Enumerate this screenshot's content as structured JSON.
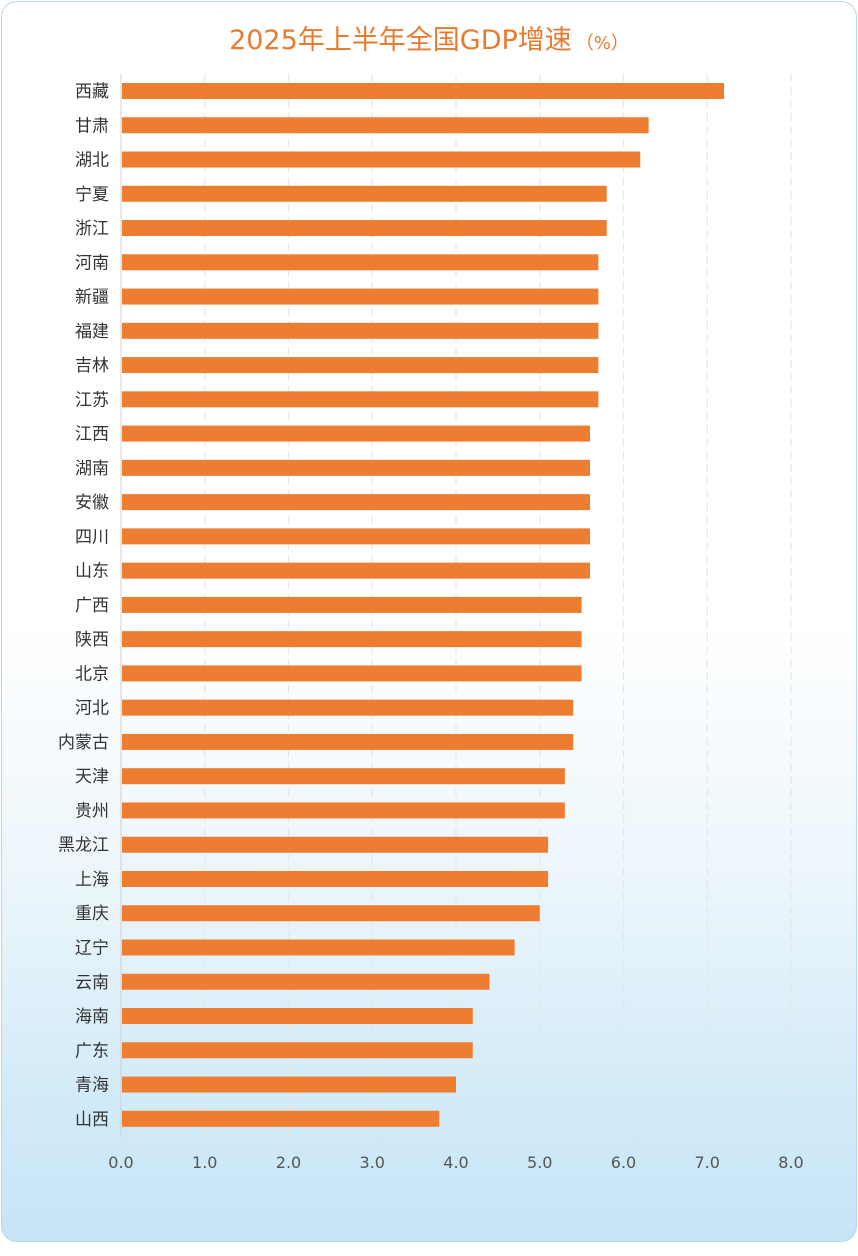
{
  "chart_data": {
    "type": "bar",
    "orientation": "horizontal",
    "title": "2025年上半年全国GDP增速",
    "unit": "（%）",
    "categories": [
      "西藏",
      "甘肃",
      "湖北",
      "宁夏",
      "浙江",
      "河南",
      "新疆",
      "福建",
      "吉林",
      "江苏",
      "江西",
      "湖南",
      "安徽",
      "四川",
      "山东",
      "广西",
      "陕西",
      "北京",
      "河北",
      "内蒙古",
      "天津",
      "贵州",
      "黑龙江",
      "上海",
      "重庆",
      "辽宁",
      "云南",
      "海南",
      "广东",
      "青海",
      "山西"
    ],
    "values": [
      7.2,
      6.3,
      6.2,
      5.8,
      5.8,
      5.7,
      5.7,
      5.7,
      5.7,
      5.7,
      5.6,
      5.6,
      5.6,
      5.6,
      5.6,
      5.5,
      5.5,
      5.5,
      5.4,
      5.4,
      5.3,
      5.3,
      5.1,
      5.1,
      5.0,
      4.7,
      4.4,
      4.2,
      4.2,
      4.0,
      3.8
    ],
    "xlim": [
      0,
      8.0
    ],
    "xticks": [
      "0.0",
      "1.0",
      "2.0",
      "3.0",
      "4.0",
      "5.0",
      "6.0",
      "7.0",
      "8.0"
    ],
    "grid": true,
    "colors": {
      "bar": "#ed7d31",
      "title": "#e97b2e"
    }
  }
}
